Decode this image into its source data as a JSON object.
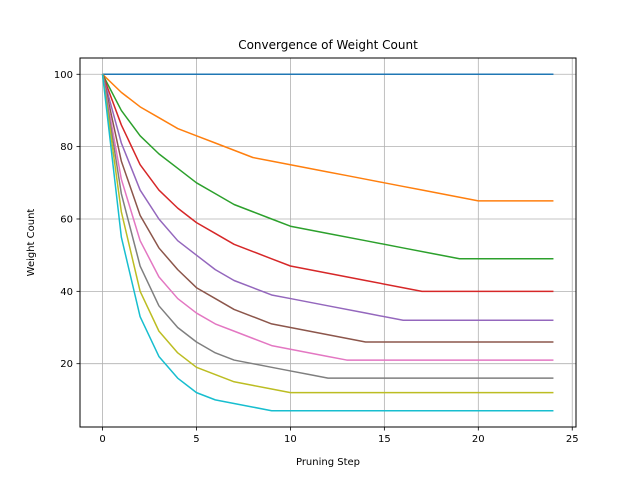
{
  "chart_data": {
    "type": "line",
    "title": "Convergence of Weight Count",
    "xlabel": "Pruning Step",
    "ylabel": "Weight Count",
    "xlim": [
      -1.2,
      25.2
    ],
    "ylim": [
      2.5,
      104.5
    ],
    "xticks": [
      0,
      5,
      10,
      15,
      20,
      25
    ],
    "yticks": [
      20,
      40,
      60,
      80,
      100
    ],
    "grid": true,
    "legend": "none",
    "series": [
      {
        "color": "#1f77b4",
        "x": [
          0,
          24
        ],
        "y": [
          100,
          100
        ]
      },
      {
        "color": "#ff7f0e",
        "x": [
          0,
          1,
          2,
          3,
          4,
          5,
          6,
          7,
          8,
          9,
          10,
          11,
          12,
          13,
          14,
          15,
          16,
          17,
          18,
          19,
          20,
          24
        ],
        "y": [
          100,
          95,
          91,
          88,
          85,
          83,
          81,
          79,
          77,
          76,
          75,
          74,
          73,
          72,
          71,
          70,
          69,
          68,
          67,
          66,
          65,
          65
        ]
      },
      {
        "color": "#2ca02c",
        "x": [
          0,
          1,
          2,
          3,
          4,
          5,
          6,
          7,
          8,
          9,
          10,
          12,
          14,
          16,
          18,
          19,
          24
        ],
        "y": [
          100,
          90,
          83,
          78,
          74,
          70,
          67,
          64,
          62,
          60,
          58,
          56,
          54,
          52,
          50,
          49,
          49
        ]
      },
      {
        "color": "#d62728",
        "x": [
          0,
          1,
          2,
          3,
          4,
          5,
          6,
          7,
          8,
          9,
          10,
          12,
          14,
          16,
          17,
          24
        ],
        "y": [
          100,
          86,
          75,
          68,
          63,
          59,
          56,
          53,
          51,
          49,
          47,
          45,
          43,
          41,
          40,
          40
        ]
      },
      {
        "color": "#9467bd",
        "x": [
          0,
          1,
          2,
          3,
          4,
          5,
          6,
          7,
          8,
          9,
          10,
          12,
          14,
          16,
          24
        ],
        "y": [
          100,
          81,
          68,
          60,
          54,
          50,
          46,
          43,
          41,
          39,
          38,
          36,
          34,
          32,
          32
        ]
      },
      {
        "color": "#8c564b",
        "x": [
          0,
          1,
          2,
          3,
          4,
          5,
          6,
          7,
          8,
          9,
          10,
          12,
          14,
          24
        ],
        "y": [
          100,
          76,
          61,
          52,
          46,
          41,
          38,
          35,
          33,
          31,
          30,
          28,
          26,
          26
        ]
      },
      {
        "color": "#e377c2",
        "x": [
          0,
          1,
          2,
          3,
          4,
          5,
          6,
          7,
          8,
          9,
          10,
          11,
          12,
          13,
          24
        ],
        "y": [
          100,
          71,
          54,
          44,
          38,
          34,
          31,
          29,
          27,
          25,
          24,
          23,
          22,
          21,
          21
        ]
      },
      {
        "color": "#7f7f7f",
        "x": [
          0,
          1,
          2,
          3,
          4,
          5,
          6,
          7,
          8,
          9,
          10,
          11,
          12,
          24
        ],
        "y": [
          100,
          67,
          47,
          36,
          30,
          26,
          23,
          21,
          20,
          19,
          18,
          17,
          16,
          16
        ]
      },
      {
        "color": "#bcbd22",
        "x": [
          0,
          1,
          2,
          3,
          4,
          5,
          6,
          7,
          8,
          9,
          10,
          24
        ],
        "y": [
          100,
          62,
          40,
          29,
          23,
          19,
          17,
          15,
          14,
          13,
          12,
          12
        ]
      },
      {
        "color": "#17becf",
        "x": [
          0,
          1,
          2,
          3,
          4,
          5,
          6,
          7,
          8,
          9,
          24
        ],
        "y": [
          100,
          55,
          33,
          22,
          16,
          12,
          10,
          9,
          8,
          7,
          7
        ]
      }
    ]
  }
}
